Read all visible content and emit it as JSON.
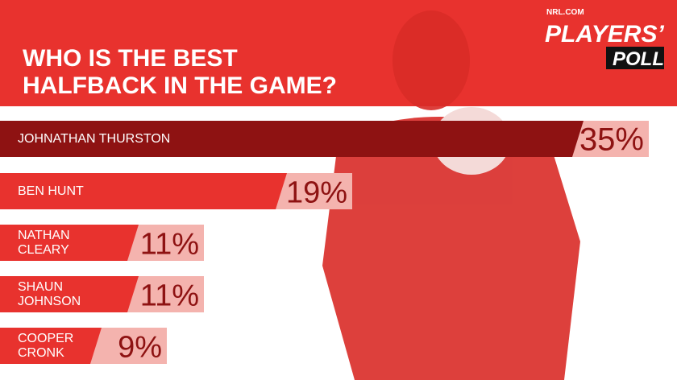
{
  "chart_data": {
    "type": "bar",
    "brand": "NRL.COM",
    "logo_title": "PLAYERS’",
    "logo_subtitle": "POLL",
    "title": "WHO IS THE BEST HALFBACK IN THE GAME?",
    "categories": [
      "JOHNATHAN THURSTON",
      "BEN HUNT",
      "NATHAN CLEARY",
      "SHAUN JOHNSON",
      "COOPER CRONK"
    ],
    "values": [
      35,
      19,
      11,
      11,
      9
    ],
    "value_labels": [
      "35%",
      "19%",
      "11%",
      "11%",
      "9%"
    ],
    "colors": [
      "#8e1212",
      "#e8322e",
      "#e8322e",
      "#e8322e",
      "#e8322e"
    ],
    "label_color": "#f4b3ae"
  }
}
